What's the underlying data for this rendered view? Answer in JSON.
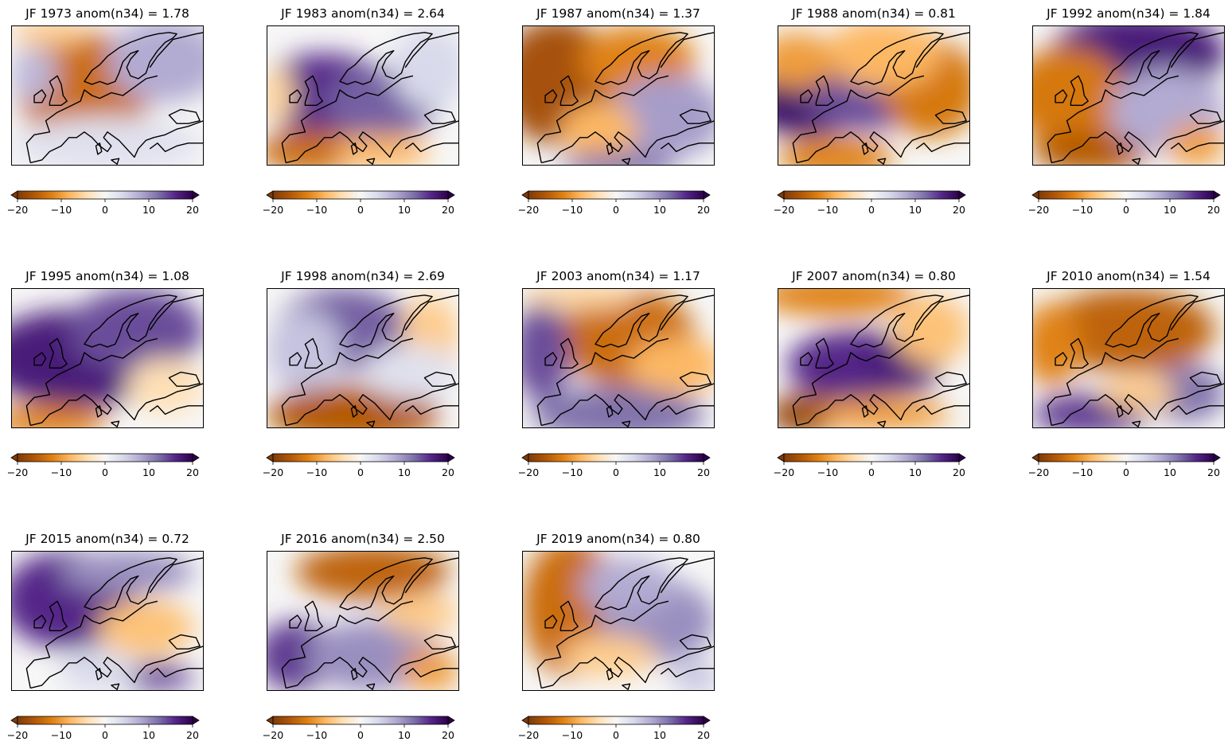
{
  "colormap": {
    "name": "PuOr",
    "stops": [
      "#7f3b08",
      "#b35806",
      "#e08214",
      "#fdb863",
      "#fee0b6",
      "#f7f7f7",
      "#d8daeb",
      "#b2abd2",
      "#8073ac",
      "#542788",
      "#2d004b"
    ]
  },
  "colorbar": {
    "min": -20,
    "max": 20,
    "ticks": [
      "−20",
      "−10",
      "0",
      "10",
      "20"
    ],
    "extend": "both"
  },
  "chart_data": [
    {
      "type": "heatmap",
      "title": "JF 1973   anom(n34) = 1.78",
      "year": 1973,
      "anom_n34": 1.78,
      "pattern": "orange west and central Europe, purple north-east"
    },
    {
      "type": "heatmap",
      "title": "JF 1983   anom(n34) = 2.64",
      "year": 1983,
      "anom_n34": 2.64,
      "pattern": "purple north-west and central Europe, orange Iberia and Mediterranean"
    },
    {
      "type": "heatmap",
      "title": "JF 1987   anom(n34) = 1.37",
      "year": 1987,
      "anom_n34": 1.37,
      "pattern": "orange west and Scandinavia, mixed purple east"
    },
    {
      "type": "heatmap",
      "title": "JF 1988   anom(n34) = 0.81",
      "year": 1988,
      "anom_n34": 0.81,
      "pattern": "purple west Atlantic and central Europe, orange north-east and south"
    },
    {
      "type": "heatmap",
      "title": "JF 1992   anom(n34) = 1.84",
      "year": 1992,
      "anom_n34": 1.84,
      "pattern": "purple north, orange south-west"
    },
    {
      "type": "heatmap",
      "title": "JF 1995   anom(n34) = 1.08",
      "year": 1995,
      "anom_n34": 1.08,
      "pattern": "purple most of Europe, orange south"
    },
    {
      "type": "heatmap",
      "title": "JF 1998   anom(n34) = 2.69",
      "year": 1998,
      "anom_n34": 2.69,
      "pattern": "purple north, orange Mediterranean"
    },
    {
      "type": "heatmap",
      "title": "JF 2003   anom(n34) = 1.17",
      "year": 2003,
      "anom_n34": 1.17,
      "pattern": "orange north and east, purple west and south"
    },
    {
      "type": "heatmap",
      "title": "JF 2007   anom(n34) = 0.80",
      "year": 2007,
      "anom_n34": 0.8,
      "pattern": "purple central Europe, orange north and south"
    },
    {
      "type": "heatmap",
      "title": "JF 2010   anom(n34) = 1.54",
      "year": 2010,
      "anom_n34": 1.54,
      "pattern": "orange north, purple south"
    },
    {
      "type": "heatmap",
      "title": "JF 2015   anom(n34) = 0.72",
      "year": 2015,
      "anom_n34": 0.72,
      "pattern": "purple north-west, mixed south"
    },
    {
      "type": "heatmap",
      "title": "JF 2016   anom(n34) = 2.50",
      "year": 2016,
      "anom_n34": 2.5,
      "pattern": "orange north, purple south-west and Mediterranean"
    },
    {
      "type": "heatmap",
      "title": "JF 2019   anom(n34) = 0.80",
      "year": 2019,
      "anom_n34": 0.8,
      "pattern": "orange west, purple east"
    }
  ]
}
